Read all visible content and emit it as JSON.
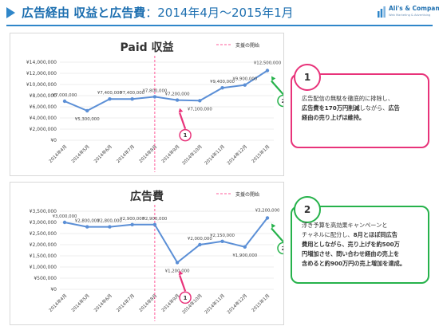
{
  "header": {
    "title_bold": "広告経由 収益と広告費",
    "title_rest": "：2014年4月～2015年1月",
    "accent_color": "#2f86c9"
  },
  "logo": {
    "name": "Ali's & Company",
    "sub": "Web Marketing & Advertising",
    "mark_icon": "company-logo-mark"
  },
  "chart_data": [
    {
      "type": "line",
      "title": "Paid 収益",
      "categories": [
        "2014年4月",
        "2014年5月",
        "2014年6月",
        "2014年7月",
        "2014年8月",
        "2014年9月",
        "2014年10月",
        "2014年11月",
        "2014年12月",
        "2015年1月"
      ],
      "series": [
        {
          "values": [
            7000000,
            5300000,
            7400000,
            7400000,
            7800000,
            7200000,
            7100000,
            9400000,
            9900000,
            12500000
          ],
          "labels": [
            "¥7,000,000",
            "¥5,300,000",
            "¥7,400,000",
            "¥7,400,000",
            "¥7,800,000",
            "¥7,200,000",
            "¥7,100,000",
            "¥9,400,000",
            "¥9,900,000",
            "¥12,500,000"
          ],
          "color": "#5b8fd6"
        }
      ],
      "ylim": [
        0,
        14000000
      ],
      "yticks": [
        0,
        2000000,
        4000000,
        6000000,
        8000000,
        10000000,
        12000000,
        14000000
      ],
      "ytick_labels": [
        "¥0",
        "¥2,000,000",
        "¥4,000,000",
        "¥6,000,000",
        "¥8,000,000",
        "¥10,000,000",
        "¥12,000,000",
        "¥14,000,000"
      ],
      "grid": true,
      "legend": "支援の開始",
      "legend_placement": "top-right",
      "marker_category": "2014年8月",
      "marker_color": "#ff5a9a",
      "annotations": [
        {
          "label": "1",
          "category": "2014年9月",
          "color": "#e8337a"
        },
        {
          "label": "2",
          "category": "2015年1月",
          "color": "#26b24b"
        }
      ]
    },
    {
      "type": "line",
      "title": "広告費",
      "categories": [
        "2014年4月",
        "2014年5月",
        "2014年6月",
        "2014年7月",
        "2014年8月",
        "2014年9月",
        "2014年10月",
        "2014年11月",
        "2014年12月",
        "2015年1月"
      ],
      "series": [
        {
          "values": [
            3000000,
            2800000,
            2800000,
            2900000,
            2900000,
            1200000,
            2000000,
            2150000,
            1900000,
            3200000
          ],
          "labels": [
            "¥3,000,000",
            "¥2,800,000",
            "¥2,800,000",
            "¥2,900,000",
            "¥2,900,000",
            "¥1,200,000",
            "¥2,000,000",
            "¥2,150,000",
            "¥1,900,000",
            "¥3,200,000"
          ],
          "color": "#5b8fd6"
        }
      ],
      "ylim": [
        0,
        3500000
      ],
      "yticks": [
        0,
        500000,
        1000000,
        1500000,
        2000000,
        2500000,
        3000000,
        3500000
      ],
      "ytick_labels": [
        "¥0",
        "¥500,000",
        "¥1,000,000",
        "¥1,500,000",
        "¥2,000,000",
        "¥2,500,000",
        "¥3,000,000",
        "¥3,500,000"
      ],
      "grid": true,
      "legend": "支援の開始",
      "legend_placement": "top-right",
      "marker_category": "2014年8月",
      "marker_color": "#ff5a9a",
      "annotations": [
        {
          "label": "1",
          "category": "2014年9月",
          "color": "#e8337a"
        },
        {
          "label": "2",
          "category": "2015年1月",
          "color": "#26b24b"
        }
      ]
    }
  ],
  "callouts": [
    {
      "badge": "1",
      "color": "#e8337a",
      "lines": [
        [
          {
            "t": "広告配信の無駄を徹底的に排除し、",
            "b": false
          }
        ],
        [
          {
            "t": "広告費を170万円削減",
            "b": true
          },
          {
            "t": "しながら、",
            "b": false
          },
          {
            "t": "広告",
            "b": true
          }
        ],
        [
          {
            "t": "経由の売り上げは維持。",
            "b": true
          }
        ]
      ]
    },
    {
      "badge": "2",
      "color": "#26b24b",
      "lines": [
        [
          {
            "t": "浮き予算を高効果キャンペーンと",
            "b": false
          }
        ],
        [
          {
            "t": "チャネルに配分し、",
            "b": false
          },
          {
            "t": "8月とほぼ同広告",
            "b": true
          }
        ],
        [
          {
            "t": "費用としながら、",
            "b": true
          },
          {
            "t": "売り上げを約500万",
            "b": true
          }
        ],
        [
          {
            "t": "円増加させ、",
            "b": true
          },
          {
            "t": "問い合わせ経由の売上を",
            "b": true
          }
        ],
        [
          {
            "t": "含めると約900万円の売上増加を達成。",
            "b": true
          }
        ]
      ]
    }
  ]
}
